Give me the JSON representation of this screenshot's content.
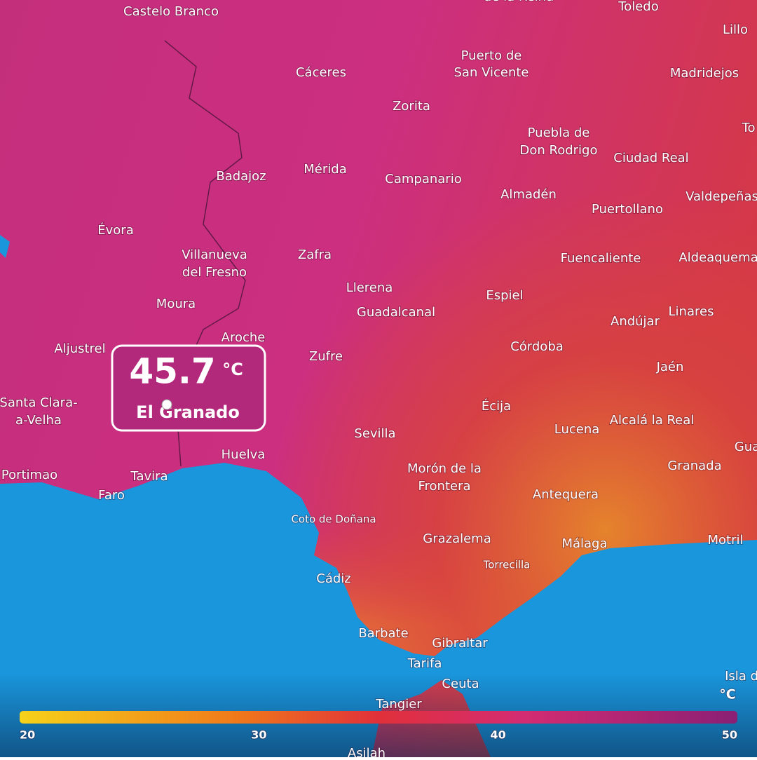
{
  "places": [
    "de la Reina",
    "Castelo Branco",
    "Toledo",
    "Lillo",
    "Cáceres",
    "Puerto de",
    "San Vicente",
    "Madridejos",
    "To",
    "Zorita",
    "Puebla de",
    "Don Rodrigo",
    "Ciudad Real",
    "Badajoz",
    "Mérida",
    "Campanario",
    "Almadén",
    "Valdepeñas",
    "Puertollano",
    "Évora",
    "Villanueva",
    "del Fresno",
    "Zafra",
    "Fuencaliente",
    "Aldeaquema",
    "Llerena",
    "Guadalcanal",
    "Espiel",
    "Linares",
    "Andújar",
    "Moura",
    "Aroche",
    "Aljustrel",
    "Zufre",
    "Córdoba",
    "Jaén",
    "Santa Clara-",
    "a-Velha",
    "Écija",
    "Sevilla",
    "Lucena",
    "Alcalá la Real",
    "Gua",
    "Huelva",
    "Portimao",
    "Tavira",
    "Faro",
    "Morón de la",
    "Frontera",
    "Granada",
    "Antequera",
    "Coto de Doñana",
    "Grazalema",
    "Málaga",
    "Motril",
    "Torrecilla",
    "Cádiz",
    "Barbate",
    "Gibraltar",
    "Tarifa",
    "Ceuta",
    "Isla d",
    "Tangier",
    "Asilah"
  ],
  "popup": {
    "value": "45.7",
    "unit": "°C",
    "place": "El Granado"
  },
  "legend": {
    "unit": "°C",
    "ticks": [
      20,
      30,
      40,
      50
    ]
  }
}
